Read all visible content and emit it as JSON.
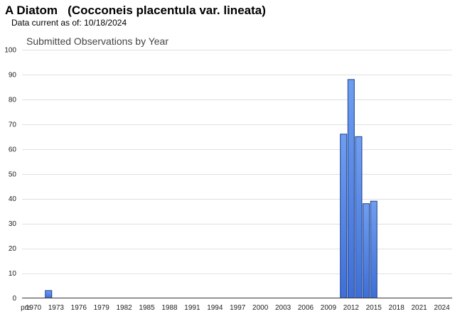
{
  "header": {
    "common_name": "A Diatom",
    "scientific_name": "(Cocconeis placentula var. lineata)",
    "data_current_label": "Data current as of:",
    "data_current_date": "10/18/2024"
  },
  "colors": {
    "bar_fill_top": "#6f9ef0",
    "bar_fill_bottom": "#3f6fd6",
    "bar_stroke": "#1a3f8f"
  },
  "chart_data": {
    "type": "bar",
    "title": "Submitted Observations by Year",
    "xlabel": "",
    "ylabel": "",
    "ylim": [
      0,
      100
    ],
    "y_ticks": [
      0,
      10,
      20,
      30,
      40,
      50,
      60,
      70,
      80,
      90,
      100
    ],
    "grid": true,
    "legend": "none",
    "x_tick_labels": [
      "pre",
      "1970",
      "1973",
      "1976",
      "1979",
      "1982",
      "1985",
      "1988",
      "1991",
      "1994",
      "1997",
      "2000",
      "2003",
      "2006",
      "2009",
      "2012",
      "2015",
      "2018",
      "2021",
      "2024"
    ],
    "categories": [
      "pre",
      "1970",
      "1971",
      "1972",
      "1973",
      "1974",
      "1975",
      "1976",
      "1977",
      "1978",
      "1979",
      "1980",
      "1981",
      "1982",
      "1983",
      "1984",
      "1985",
      "1986",
      "1987",
      "1988",
      "1989",
      "1990",
      "1991",
      "1992",
      "1993",
      "1994",
      "1995",
      "1996",
      "1997",
      "1998",
      "1999",
      "2000",
      "2001",
      "2002",
      "2003",
      "2004",
      "2005",
      "2006",
      "2007",
      "2008",
      "2009",
      "2010",
      "2011",
      "2012",
      "2013",
      "2014",
      "2015",
      "2016",
      "2017",
      "2018",
      "2019",
      "2020",
      "2021",
      "2022",
      "2023",
      "2024"
    ],
    "values": [
      0,
      0,
      0,
      3,
      0,
      0,
      0,
      0,
      0,
      0,
      0,
      0,
      0,
      0,
      0,
      0,
      0,
      0,
      0,
      0,
      0,
      0,
      0,
      0,
      0,
      0,
      0,
      0,
      0,
      0,
      0,
      0,
      0,
      0,
      0,
      0,
      0,
      0,
      0,
      0,
      0,
      0,
      66,
      88,
      65,
      38,
      39,
      0,
      0,
      0,
      0,
      0,
      0,
      0,
      0,
      0
    ]
  }
}
